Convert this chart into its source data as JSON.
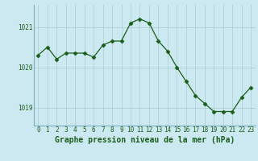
{
  "x": [
    0,
    1,
    2,
    3,
    4,
    5,
    6,
    7,
    8,
    9,
    10,
    11,
    12,
    13,
    14,
    15,
    16,
    17,
    18,
    19,
    20,
    21,
    22,
    23
  ],
  "y": [
    1020.3,
    1020.5,
    1020.2,
    1020.35,
    1020.35,
    1020.35,
    1020.25,
    1020.55,
    1020.65,
    1020.65,
    1021.1,
    1021.2,
    1021.1,
    1020.65,
    1020.4,
    1020.0,
    1019.65,
    1019.3,
    1019.1,
    1018.9,
    1018.9,
    1018.9,
    1019.25,
    1019.5
  ],
  "line_color": "#1a5e1a",
  "marker": "D",
  "marker_size": 2.5,
  "bg_color": "#cce8f0",
  "grid_color": "#aaccd4",
  "xlabel": "Graphe pression niveau de la mer (hPa)",
  "xlabel_fontsize": 7,
  "tick_fontsize": 5.5,
  "ytick_labels": [
    "1019",
    "1020",
    "1021"
  ],
  "ytick_values": [
    1019,
    1020,
    1021
  ],
  "ylim": [
    1018.55,
    1021.55
  ],
  "xlim": [
    -0.5,
    23.5
  ]
}
